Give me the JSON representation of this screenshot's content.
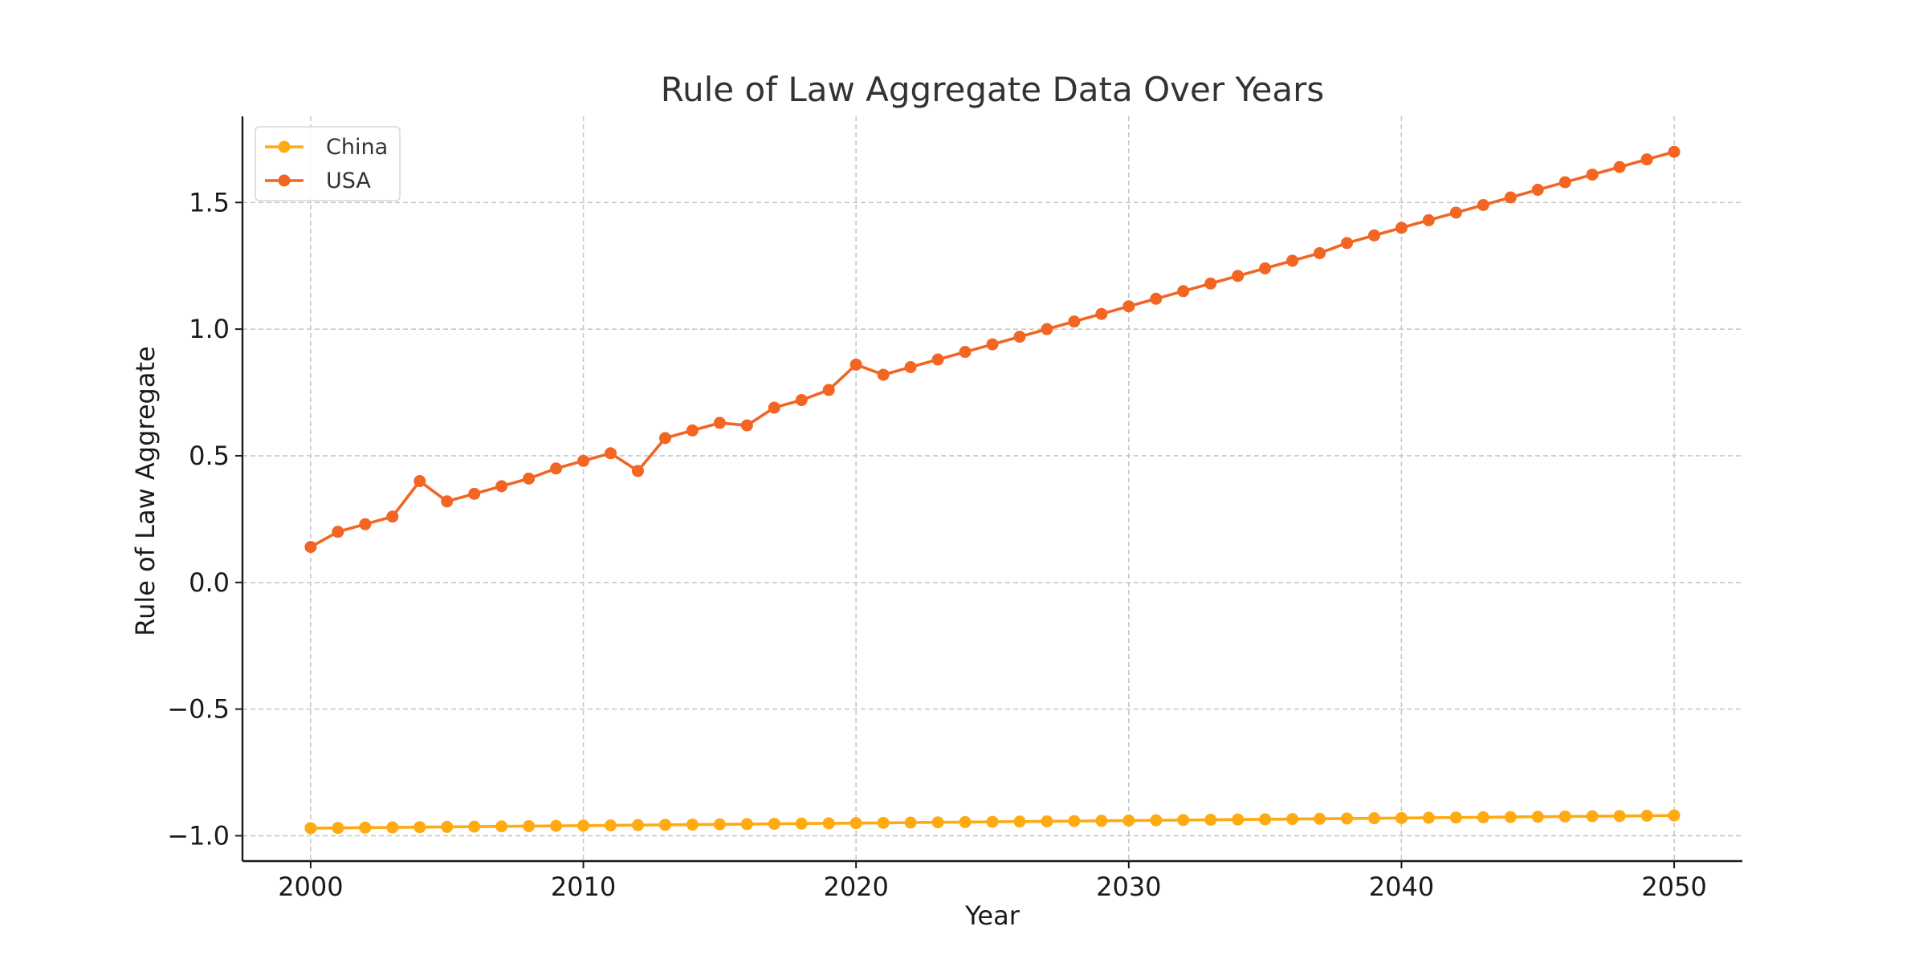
{
  "chart_data": {
    "type": "line",
    "title": "Rule of Law Aggregate Data Over Years",
    "xlabel": "Year",
    "ylabel": "Rule of Law Aggregate",
    "xlim": [
      1997.5,
      2052.5
    ],
    "ylim": [
      -1.1,
      1.84
    ],
    "xticks": [
      2000,
      2010,
      2020,
      2030,
      2040,
      2050
    ],
    "yticks": [
      -1.0,
      -0.5,
      0.0,
      0.5,
      1.0,
      1.5
    ],
    "ytick_labels": [
      "−1.0",
      "−0.5",
      "0.0",
      "0.5",
      "1.0",
      "1.5"
    ],
    "grid": true,
    "legend_position": "top-left",
    "x": [
      2000,
      2001,
      2002,
      2003,
      2004,
      2005,
      2006,
      2007,
      2008,
      2009,
      2010,
      2011,
      2012,
      2013,
      2014,
      2015,
      2016,
      2017,
      2018,
      2019,
      2020,
      2021,
      2022,
      2023,
      2024,
      2025,
      2026,
      2027,
      2028,
      2029,
      2030,
      2031,
      2032,
      2033,
      2034,
      2035,
      2036,
      2037,
      2038,
      2039,
      2040,
      2041,
      2042,
      2043,
      2044,
      2045,
      2046,
      2047,
      2048,
      2049,
      2050
    ],
    "series": [
      {
        "name": "China",
        "color": "#FFAA11",
        "values": [
          -0.97,
          -0.969,
          -0.968,
          -0.967,
          -0.966,
          -0.965,
          -0.964,
          -0.963,
          -0.962,
          -0.961,
          -0.96,
          -0.959,
          -0.958,
          -0.957,
          -0.956,
          -0.955,
          -0.954,
          -0.953,
          -0.952,
          -0.951,
          -0.95,
          -0.949,
          -0.948,
          -0.947,
          -0.946,
          -0.945,
          -0.944,
          -0.943,
          -0.942,
          -0.941,
          -0.94,
          -0.939,
          -0.938,
          -0.937,
          -0.936,
          -0.935,
          -0.934,
          -0.933,
          -0.932,
          -0.931,
          -0.93,
          -0.929,
          -0.928,
          -0.927,
          -0.926,
          -0.925,
          -0.924,
          -0.923,
          -0.922,
          -0.921,
          -0.92
        ]
      },
      {
        "name": "USA",
        "color": "#F26522",
        "values": [
          0.14,
          0.2,
          0.23,
          0.26,
          0.4,
          0.32,
          0.35,
          0.38,
          0.41,
          0.45,
          0.48,
          0.51,
          0.44,
          0.57,
          0.6,
          0.63,
          0.62,
          0.69,
          0.72,
          0.76,
          0.86,
          0.82,
          0.85,
          0.88,
          0.91,
          0.94,
          0.97,
          1.0,
          1.03,
          1.06,
          1.09,
          1.12,
          1.15,
          1.18,
          1.21,
          1.24,
          1.27,
          1.3,
          1.34,
          1.37,
          1.4,
          1.43,
          1.46,
          1.49,
          1.52,
          1.55,
          1.58,
          1.61,
          1.64,
          1.67,
          1.7
        ]
      }
    ]
  }
}
